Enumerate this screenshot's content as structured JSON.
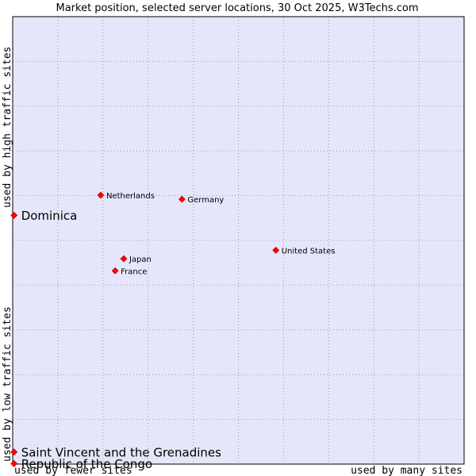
{
  "chart_data": {
    "type": "scatter",
    "title": "Market position, selected server locations, 30 Oct 2025, W3Techs.com",
    "xlabel_left": "used by fewer sites",
    "xlabel_right": "used by many sites",
    "ylabel_top": "used by high traffic sites",
    "ylabel_bottom": "used by low traffic sites",
    "grid": true,
    "xlim": [
      0,
      100
    ],
    "ylim": [
      0,
      100
    ],
    "points": [
      {
        "name": "Dominica",
        "x": 0.3,
        "y": 55.6,
        "emphasis": true
      },
      {
        "name": "Netherlands",
        "x": 19.5,
        "y": 60.1,
        "emphasis": false
      },
      {
        "name": "Germany",
        "x": 37.5,
        "y": 59.2,
        "emphasis": false
      },
      {
        "name": "United States",
        "x": 58.3,
        "y": 47.8,
        "emphasis": false
      },
      {
        "name": "Japan",
        "x": 24.6,
        "y": 45.9,
        "emphasis": false
      },
      {
        "name": "France",
        "x": 22.7,
        "y": 43.2,
        "emphasis": false
      },
      {
        "name": "Saint Vincent and the Grenadines",
        "x": 0.3,
        "y": 2.7,
        "emphasis": true
      },
      {
        "name": "Republic of the Congo",
        "x": 0.3,
        "y": 0.1,
        "emphasis": true
      }
    ]
  },
  "colors": {
    "plot_background": "#e6e6fa",
    "grid": "#9a9ab0",
    "point": "#ff0000",
    "point_outline": "#b00000"
  }
}
